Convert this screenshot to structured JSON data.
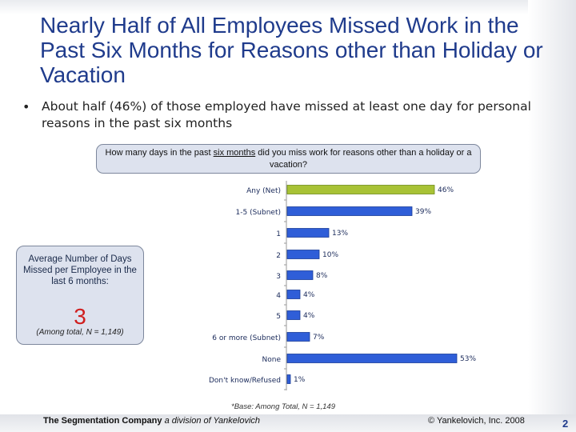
{
  "title": "Nearly Half of All Employees Missed Work in the Past Six Months for Reasons other than Holiday or Vacation",
  "bullet": "About half (46%) of those employed have missed at least one day for personal reasons in the past six months",
  "question": {
    "before": "How many days in the past ",
    "underlined": "six months",
    "after": " did you miss work for reasons other than a holiday or a vacation?"
  },
  "average_box": {
    "label": "Average Number of Days Missed per Employee in the last 6 months:",
    "value": "3",
    "note": "(Among total, N = 1,149)"
  },
  "chart_data": {
    "type": "bar",
    "orientation": "horizontal",
    "categories": [
      "Any (Net)",
      "1-5 (Subnet)",
      "1",
      "2",
      "3",
      "4",
      "5",
      "6 or more (Subnet)",
      "None",
      "Don't know/Refused"
    ],
    "values": [
      46,
      39,
      13,
      10,
      8,
      4,
      4,
      7,
      53,
      1
    ],
    "value_labels": [
      "46%",
      "39%",
      "13%",
      "10%",
      "8%",
      "4%",
      "4%",
      "7%",
      "53%",
      "1%"
    ],
    "series": [
      {
        "values": [
          46,
          39,
          13,
          10,
          8,
          4,
          4,
          7,
          53,
          1
        ]
      }
    ],
    "colors": {
      "net": "#a8c235",
      "default": "#2f5ed8"
    },
    "net_categories": [
      "Any (Net)"
    ],
    "xlim": [
      0,
      60
    ]
  },
  "base_note": "*Base: Among Total, N = 1,149",
  "footer": {
    "company": "The Segmentation Company",
    "division": " a division of Yankelovich",
    "copyright": "© Yankelovich, Inc. 2008",
    "page": "2"
  }
}
